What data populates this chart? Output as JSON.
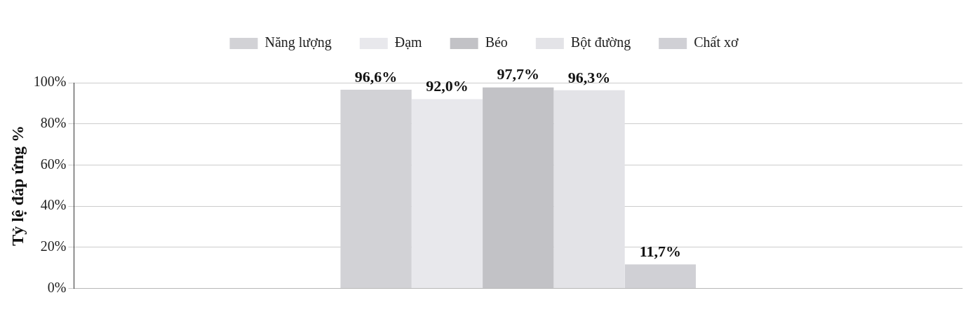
{
  "chart_data": {
    "type": "bar",
    "ylabel": "Tỷ lệ đáp ứng %",
    "categories": [
      null
    ],
    "series": [
      {
        "name": "Năng lượng",
        "color": "#d2d2d6",
        "values": [
          96.6
        ],
        "value_labels": [
          "96,6%"
        ]
      },
      {
        "name": "Đạm",
        "color": "#e8e8ec",
        "values": [
          92.0
        ],
        "value_labels": [
          "92,0%"
        ]
      },
      {
        "name": "Béo",
        "color": "#c2c2c6",
        "values": [
          97.7
        ],
        "value_labels": [
          "97,7%"
        ]
      },
      {
        "name": "Bột đường",
        "color": "#e3e3e7",
        "values": [
          96.3
        ],
        "value_labels": [
          "96,3%"
        ]
      },
      {
        "name": "Chất xơ",
        "color": "#d0d0d5",
        "values": [
          11.7
        ],
        "value_labels": [
          "11,7%"
        ]
      }
    ],
    "ylim": [
      0,
      100
    ],
    "yticks": [
      {
        "value": 0,
        "label": "0%"
      },
      {
        "value": 20,
        "label": "20%"
      },
      {
        "value": 40,
        "label": "40%"
      },
      {
        "value": 60,
        "label": "60%"
      },
      {
        "value": 80,
        "label": "80%"
      },
      {
        "value": 100,
        "label": "100%"
      }
    ],
    "grid": "y",
    "legend": "top"
  }
}
